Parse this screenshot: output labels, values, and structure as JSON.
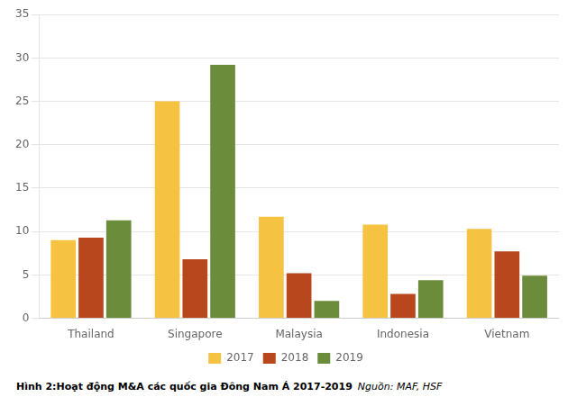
{
  "chart_data": {
    "type": "bar",
    "categories": [
      "Thailand",
      "Singapore",
      "Malaysia",
      "Indonesia",
      "Vietnam"
    ],
    "series": [
      {
        "name": "2017",
        "color": "#F5C242",
        "values": [
          9.0,
          25.0,
          11.7,
          10.8,
          10.3
        ]
      },
      {
        "name": "2018",
        "color": "#B8471B",
        "values": [
          9.3,
          6.8,
          5.2,
          2.8,
          7.7
        ]
      },
      {
        "name": "2019",
        "color": "#6B8C3A",
        "values": [
          11.3,
          29.2,
          2.0,
          4.4,
          4.9
        ]
      }
    ],
    "ylim": [
      0,
      35
    ],
    "yticks": [
      0,
      5,
      10,
      15,
      20,
      25,
      30,
      35
    ],
    "grid": true,
    "legend": "bottom",
    "annotations": [
      "Hình 2:Hoạt động M&A các quốc gia Đông Nam Á 2017-2019",
      "Nguồn: MAF, HSF"
    ]
  }
}
